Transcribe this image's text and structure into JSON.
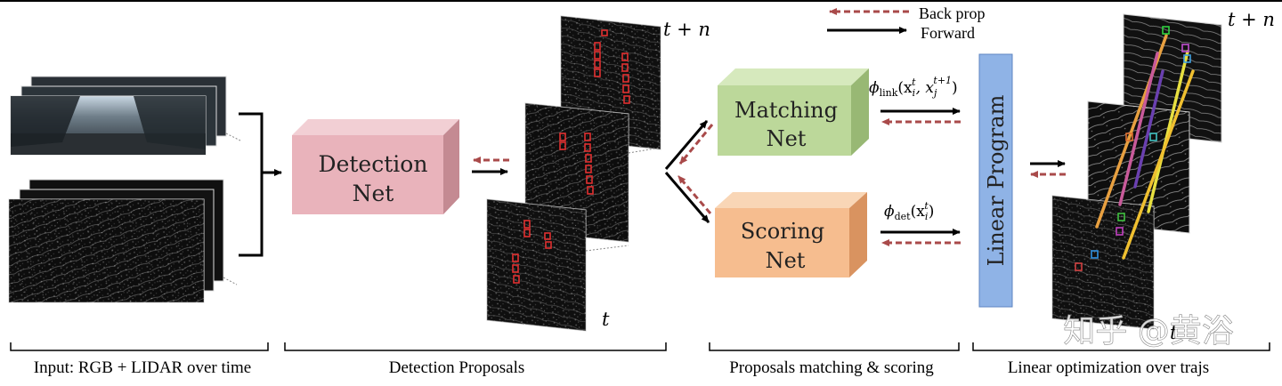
{
  "legend": {
    "backprop_label": "Back prop",
    "forward_label": "Forward",
    "backprop_color": "#a94a4a",
    "forward_color": "#000000"
  },
  "boxes": {
    "detection": {
      "line1": "Detection",
      "line2": "Net",
      "color": "#e9b3bb"
    },
    "matching": {
      "line1": "Matching",
      "line2": "Net",
      "color": "#bcd89a"
    },
    "scoring": {
      "line1": "Scoring",
      "line2": "Net",
      "color": "#f6bd8f"
    },
    "linear": {
      "label": "Linear Program",
      "color": "#8fb3e6"
    }
  },
  "time_labels": {
    "proposals_top": "t + n",
    "proposals_bottom": "t",
    "output_top": "t + n",
    "output_bottom": "t"
  },
  "formulas": {
    "link_base": "ϕ",
    "link_sub": "link",
    "link_open": "(x",
    "link_sub_i": "i",
    "link_sup_t": "t",
    "link_comma": ", x",
    "link_sub_j": "j",
    "link_sup_t1": "t+1",
    "link_close": ")",
    "det_base": "ϕ",
    "det_sub": "det",
    "det_open": "(x",
    "det_sub_i": "i",
    "det_sup_t": "t",
    "det_close": ")"
  },
  "stages": [
    {
      "label": "Input: RGB + LIDAR over time"
    },
    {
      "label": "Detection Proposals"
    },
    {
      "label": "Proposals matching & scoring"
    },
    {
      "label": "Linear optimization over trajs"
    }
  ],
  "watermark": "知乎 @黄浴"
}
